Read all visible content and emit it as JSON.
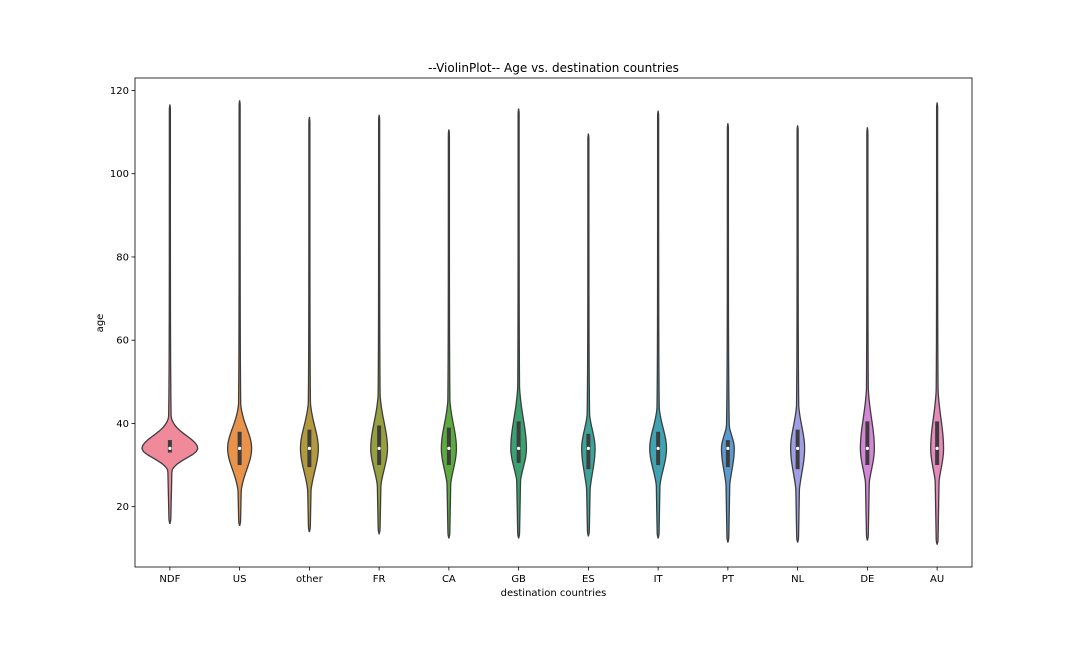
{
  "chart_data": {
    "type": "violin",
    "title": "--ViolinPlot-- Age vs. destination countries",
    "xlabel": "destination countries",
    "ylabel": "age",
    "ylim": [
      5.5,
      123
    ],
    "yticks": [
      20,
      40,
      60,
      80,
      100,
      120
    ],
    "grid": false,
    "legend": "none",
    "categories": [
      "NDF",
      "US",
      "other",
      "FR",
      "CA",
      "GB",
      "ES",
      "IT",
      "PT",
      "NL",
      "DE",
      "AU"
    ],
    "colors": [
      "#f77189",
      "#d58c32",
      "#a4a031",
      "#50b131",
      "#34ae91",
      "#37abb5",
      "#3ba3ec",
      "#bb83f4",
      "#f564d4"
    ],
    "series": [
      {
        "category": "NDF",
        "color": "#f0899a",
        "min": 16,
        "max": 116.5,
        "q1": 33,
        "median": 34,
        "q3": 36,
        "halfwidth": 1.0
      },
      {
        "category": "US",
        "color": "#e8924b",
        "min": 15.5,
        "max": 117.5,
        "q1": 30,
        "median": 34,
        "q3": 38,
        "halfwidth": 0.43
      },
      {
        "category": "other",
        "color": "#b49a3e",
        "min": 14,
        "max": 113.5,
        "q1": 29.5,
        "median": 34,
        "q3": 38.5,
        "halfwidth": 0.32
      },
      {
        "category": "FR",
        "color": "#96a03e",
        "min": 13.5,
        "max": 114,
        "q1": 30,
        "median": 34,
        "q3": 39.5,
        "halfwidth": 0.3
      },
      {
        "category": "CA",
        "color": "#5cab3f",
        "min": 12.5,
        "max": 110.5,
        "q1": 30,
        "median": 34,
        "q3": 39,
        "halfwidth": 0.27
      },
      {
        "category": "GB",
        "color": "#3aa272",
        "min": 12.5,
        "max": 115.5,
        "q1": 30.5,
        "median": 34,
        "q3": 40.5,
        "halfwidth": 0.28
      },
      {
        "category": "ES",
        "color": "#3ca59a",
        "min": 13,
        "max": 109.5,
        "q1": 29,
        "median": 34,
        "q3": 37.5,
        "halfwidth": 0.24
      },
      {
        "category": "IT",
        "color": "#3ea3b2",
        "min": 12.5,
        "max": 115,
        "q1": 30,
        "median": 34,
        "q3": 38,
        "halfwidth": 0.3
      },
      {
        "category": "PT",
        "color": "#5a9bd2",
        "min": 11.5,
        "max": 112,
        "q1": 29.5,
        "median": 34,
        "q3": 36,
        "halfwidth": 0.23
      },
      {
        "category": "NL",
        "color": "#a09fe5",
        "min": 11.5,
        "max": 111.5,
        "q1": 29,
        "median": 34,
        "q3": 38.5,
        "halfwidth": 0.25
      },
      {
        "category": "DE",
        "color": "#d586d6",
        "min": 12,
        "max": 111,
        "q1": 30,
        "median": 34,
        "q3": 40.5,
        "halfwidth": 0.25
      },
      {
        "category": "AU",
        "color": "#e889bb",
        "min": 11,
        "max": 117,
        "q1": 30,
        "median": 34,
        "q3": 40.5,
        "halfwidth": 0.23
      }
    ]
  }
}
